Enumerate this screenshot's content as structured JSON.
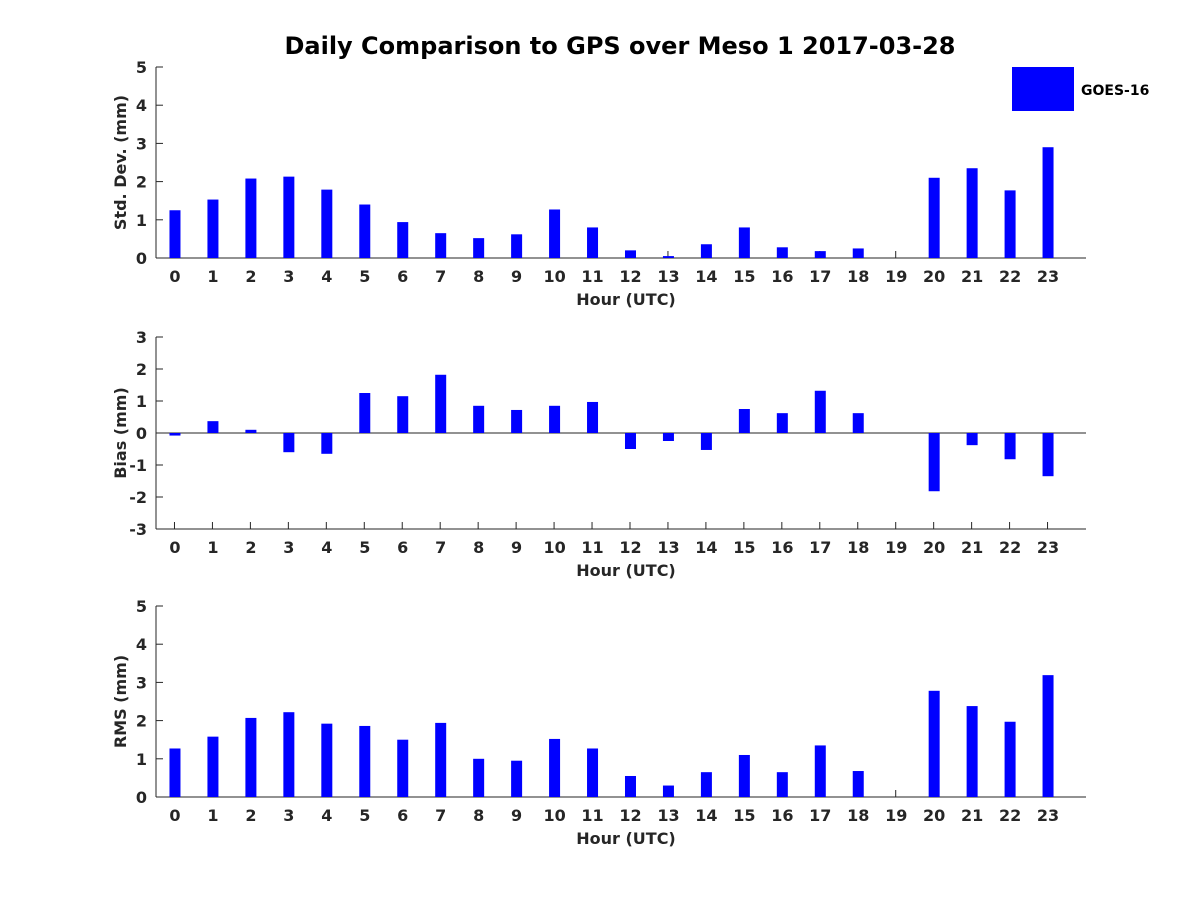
{
  "title": "Daily Comparison to GPS over Meso 1 2017-03-28",
  "legend": {
    "label": "GOES-16",
    "color": "#0000ff",
    "position": "top-right"
  },
  "chart_data": [
    {
      "type": "bar",
      "xlabel": "Hour (UTC)",
      "ylabel": "Std. Dev. (mm)",
      "ylim": [
        0,
        5
      ],
      "yticks": [
        "0",
        "1",
        "2",
        "3",
        "4",
        "5"
      ],
      "categories": [
        "0",
        "1",
        "2",
        "3",
        "4",
        "5",
        "6",
        "7",
        "8",
        "9",
        "10",
        "11",
        "12",
        "13",
        "14",
        "15",
        "16",
        "17",
        "18",
        "19",
        "20",
        "21",
        "22",
        "23"
      ],
      "series": [
        {
          "name": "GOES-16",
          "color": "#0000ff",
          "values": [
            1.25,
            1.53,
            2.08,
            2.13,
            1.79,
            1.4,
            0.94,
            0.65,
            0.52,
            0.62,
            1.27,
            0.8,
            0.2,
            0.05,
            0.36,
            0.8,
            0.28,
            0.18,
            0.25,
            0,
            2.1,
            2.35,
            1.77,
            2.9
          ]
        }
      ]
    },
    {
      "type": "bar",
      "xlabel": "Hour (UTC)",
      "ylabel": "Bias (mm)",
      "ylim": [
        -3,
        3
      ],
      "yticks": [
        "-3",
        "-2",
        "-1",
        "0",
        "1",
        "2",
        "3"
      ],
      "categories": [
        "0",
        "1",
        "2",
        "3",
        "4",
        "5",
        "6",
        "7",
        "8",
        "9",
        "10",
        "11",
        "12",
        "13",
        "14",
        "15",
        "16",
        "17",
        "18",
        "19",
        "20",
        "21",
        "22",
        "23"
      ],
      "series": [
        {
          "name": "GOES-16",
          "color": "#0000ff",
          "values": [
            -0.08,
            0.37,
            0.1,
            -0.6,
            -0.65,
            1.25,
            1.15,
            1.82,
            0.85,
            0.72,
            0.85,
            0.97,
            -0.5,
            -0.25,
            -0.53,
            0.75,
            0.62,
            1.32,
            0.62,
            0,
            -1.82,
            -0.38,
            -0.82,
            -1.35
          ]
        }
      ]
    },
    {
      "type": "bar",
      "xlabel": "Hour (UTC)",
      "ylabel": "RMS (mm)",
      "ylim": [
        0,
        5
      ],
      "yticks": [
        "0",
        "1",
        "2",
        "3",
        "4",
        "5"
      ],
      "categories": [
        "0",
        "1",
        "2",
        "3",
        "4",
        "5",
        "6",
        "7",
        "8",
        "9",
        "10",
        "11",
        "12",
        "13",
        "14",
        "15",
        "16",
        "17",
        "18",
        "19",
        "20",
        "21",
        "22",
        "23"
      ],
      "series": [
        {
          "name": "GOES-16",
          "color": "#0000ff",
          "values": [
            1.27,
            1.58,
            2.07,
            2.22,
            1.92,
            1.86,
            1.5,
            1.94,
            1.0,
            0.95,
            1.52,
            1.27,
            0.55,
            0.3,
            0.65,
            1.1,
            0.65,
            1.35,
            0.68,
            0,
            2.78,
            2.38,
            1.97,
            3.19
          ]
        }
      ]
    }
  ]
}
